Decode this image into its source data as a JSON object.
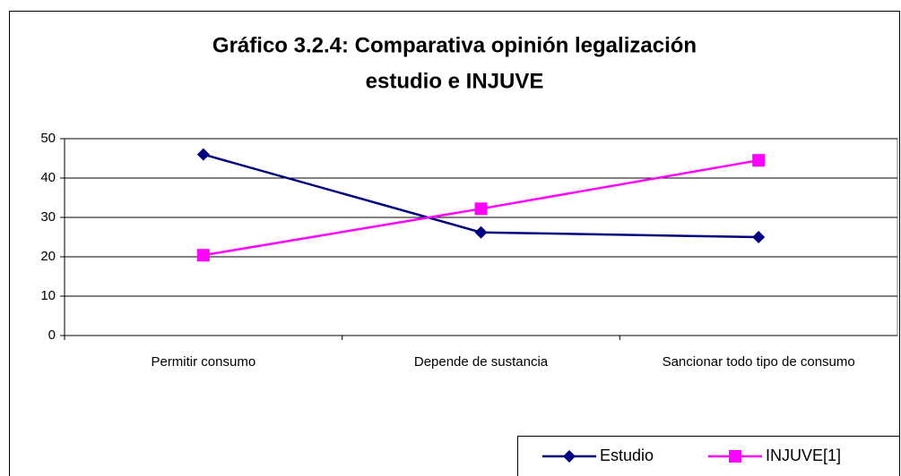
{
  "chart_data": {
    "type": "line",
    "title": [
      "Gráfico 3.2.4: Comparativa opinión legalización",
      "estudio e INJUVE"
    ],
    "categories": [
      "Permitir consumo",
      "Depende de sustancia",
      "Sancionar todo tipo de consumo"
    ],
    "series": [
      {
        "name": "Estudio",
        "color": "#000080",
        "marker": "diamond",
        "values": [
          46,
          26.2,
          25
        ]
      },
      {
        "name": "INJUVE[1]",
        "color": "#ff00ff",
        "marker": "square",
        "values": [
          20.4,
          32.2,
          44.5
        ]
      }
    ],
    "ylim": [
      0,
      50
    ],
    "yticks": [
      0,
      10,
      20,
      30,
      40,
      50
    ],
    "grid": true,
    "legend": "lower right"
  }
}
